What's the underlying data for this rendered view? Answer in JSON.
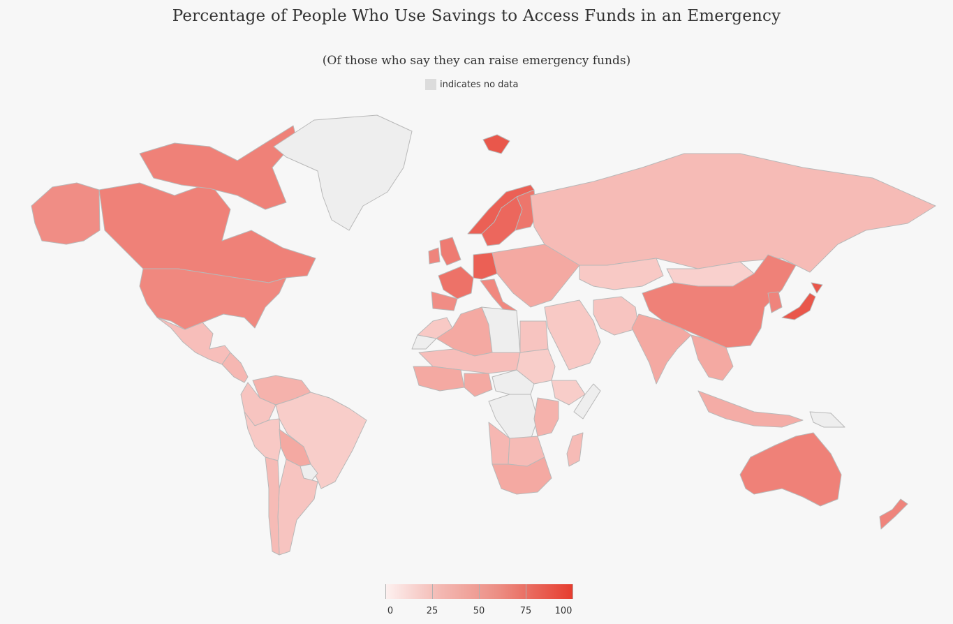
{
  "title": "Percentage of People Who Use Savings to Access Funds in an Emergency",
  "subtitle": "(Of those who say they can raise emergency funds)",
  "no_data_label": "indicates no data",
  "colors": {
    "background": "#f7f7f7",
    "no_data": "#eeeeee",
    "border": "#b8b8b8",
    "scale_low": "#fdf1f0",
    "scale_high": "#e63c2e"
  },
  "legend": {
    "min": 0,
    "max": 100,
    "ticks": [
      "0",
      "25",
      "50",
      "75",
      "100"
    ]
  },
  "map_data": {
    "type": "choropleth",
    "regions": [
      {
        "name": "Canada",
        "value": 62
      },
      {
        "name": "United States",
        "value": 58
      },
      {
        "name": "Alaska",
        "value": 55
      },
      {
        "name": "Greenland",
        "value": null
      },
      {
        "name": "Iceland",
        "value": 85
      },
      {
        "name": "Mexico",
        "value": 28
      },
      {
        "name": "Central America",
        "value": 32
      },
      {
        "name": "Venezuela",
        "value": 35
      },
      {
        "name": "Colombia",
        "value": 25
      },
      {
        "name": "Brazil",
        "value": 20
      },
      {
        "name": "Peru",
        "value": 22
      },
      {
        "name": "Bolivia",
        "value": 40
      },
      {
        "name": "Paraguay",
        "value": null
      },
      {
        "name": "Argentina",
        "value": 25
      },
      {
        "name": "Chile",
        "value": 30
      },
      {
        "name": "Norway",
        "value": 80
      },
      {
        "name": "Sweden",
        "value": 76
      },
      {
        "name": "Finland",
        "value": 68
      },
      {
        "name": "United Kingdom",
        "value": 65
      },
      {
        "name": "Ireland",
        "value": 60
      },
      {
        "name": "France",
        "value": 70
      },
      {
        "name": "Spain",
        "value": 55
      },
      {
        "name": "Germany",
        "value": 80
      },
      {
        "name": "Italy",
        "value": 58
      },
      {
        "name": "Eastern Europe",
        "value": 40
      },
      {
        "name": "Russia",
        "value": 30
      },
      {
        "name": "Kazakhstan",
        "value": 22
      },
      {
        "name": "Mongolia",
        "value": 18
      },
      {
        "name": "China",
        "value": 62
      },
      {
        "name": "Japan",
        "value": 85
      },
      {
        "name": "Korea",
        "value": 60
      },
      {
        "name": "Middle East",
        "value": 22
      },
      {
        "name": "Iran",
        "value": 25
      },
      {
        "name": "India",
        "value": 40
      },
      {
        "name": "Southeast Asia",
        "value": 40
      },
      {
        "name": "Indonesia",
        "value": 38
      },
      {
        "name": "Papua New Guinea",
        "value": null
      },
      {
        "name": "Australia",
        "value": 62
      },
      {
        "name": "New Zealand",
        "value": 60
      },
      {
        "name": "Morocco",
        "value": 22
      },
      {
        "name": "Western Sahara",
        "value": null
      },
      {
        "name": "Algeria",
        "value": 40
      },
      {
        "name": "Libya",
        "value": null
      },
      {
        "name": "Egypt",
        "value": 25
      },
      {
        "name": "Sahel",
        "value": 28
      },
      {
        "name": "Sudan",
        "value": 20
      },
      {
        "name": "West Africa",
        "value": 40
      },
      {
        "name": "Nigeria",
        "value": 40
      },
      {
        "name": "Ethiopia",
        "value": 20
      },
      {
        "name": "Somalia",
        "value": null
      },
      {
        "name": "Central Africa",
        "value": null
      },
      {
        "name": "DR Congo",
        "value": null
      },
      {
        "name": "East Africa",
        "value": 35
      },
      {
        "name": "Angola",
        "value": 32
      },
      {
        "name": "Zambia",
        "value": 30
      },
      {
        "name": "Southern Africa",
        "value": 40
      },
      {
        "name": "Madagascar",
        "value": 30
      }
    ]
  }
}
